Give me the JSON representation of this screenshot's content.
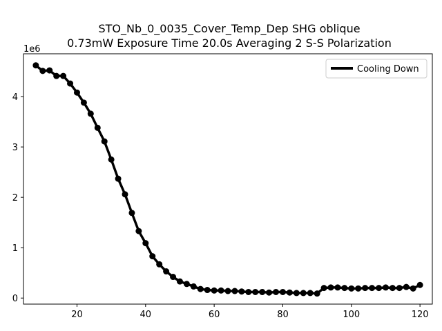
{
  "chart_data": {
    "type": "line",
    "title_line1": "STO_Nb_0_0035_Cover_Temp_Dep SHG oblique",
    "title_line2": "0.73mW Exposure Time 20.0s Averaging 2 S-S  Polarization",
    "xlabel": "",
    "ylabel": "",
    "y_offset_label": "1e6",
    "xlim": [
      4.4,
      123.6
    ],
    "ylim": [
      -0.12,
      4.85
    ],
    "x_ticks": [
      20,
      40,
      60,
      80,
      100,
      120
    ],
    "y_ticks": [
      0,
      1,
      2,
      3,
      4
    ],
    "grid": false,
    "legend_position": "top-right",
    "series": [
      {
        "name": "Cooling Down",
        "color": "#000000",
        "x": [
          8,
          10,
          12,
          14,
          16,
          18,
          20,
          22,
          24,
          26,
          28,
          30,
          32,
          34,
          36,
          38,
          40,
          42,
          44,
          46,
          48,
          50,
          52,
          54,
          56,
          58,
          60,
          62,
          64,
          66,
          68,
          70,
          72,
          74,
          76,
          78,
          80,
          82,
          84,
          86,
          88,
          90,
          92,
          94,
          96,
          98,
          100,
          102,
          104,
          106,
          108,
          110,
          112,
          114,
          116,
          118,
          120
        ],
        "y": [
          4.62,
          4.51,
          4.52,
          4.41,
          4.41,
          4.26,
          4.08,
          3.88,
          3.66,
          3.38,
          3.11,
          2.75,
          2.37,
          2.06,
          1.69,
          1.33,
          1.09,
          0.83,
          0.67,
          0.53,
          0.42,
          0.33,
          0.28,
          0.23,
          0.18,
          0.16,
          0.15,
          0.15,
          0.14,
          0.14,
          0.13,
          0.12,
          0.12,
          0.12,
          0.11,
          0.12,
          0.12,
          0.11,
          0.1,
          0.1,
          0.1,
          0.09,
          0.2,
          0.21,
          0.21,
          0.2,
          0.19,
          0.19,
          0.2,
          0.2,
          0.2,
          0.21,
          0.2,
          0.2,
          0.22,
          0.19,
          0.26
        ]
      }
    ]
  }
}
